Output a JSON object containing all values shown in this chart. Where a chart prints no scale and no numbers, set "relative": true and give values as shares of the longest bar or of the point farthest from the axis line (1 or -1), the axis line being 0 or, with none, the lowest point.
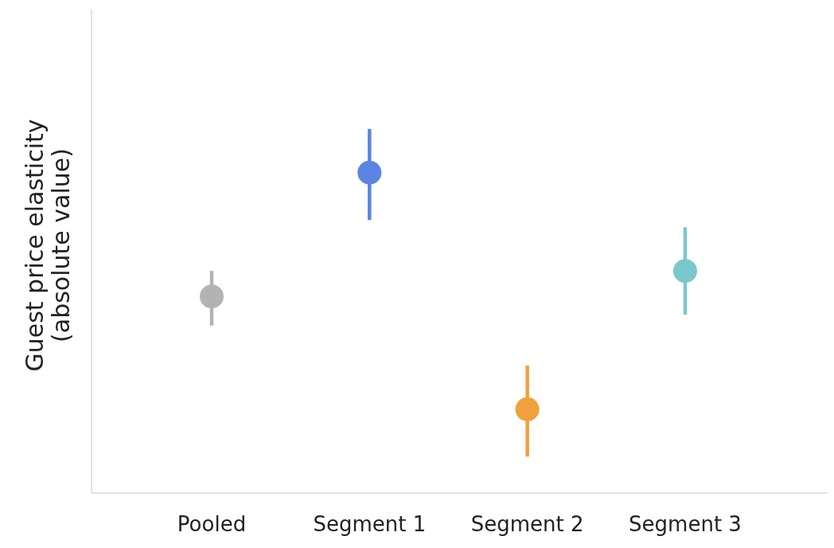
{
  "chart_data": {
    "type": "scatter",
    "relative": true,
    "ylabel": "Guest price elasticity\n(absolute value)",
    "categories": [
      "Pooled",
      "Segment 1",
      "Segment 2",
      "Segment 3"
    ],
    "series": [
      {
        "type": "line",
        "x": [
          "Pooled",
          "Pooled"
        ],
        "values": [
          0.46,
          0.61
        ],
        "color": "#b3b3b3"
      },
      {
        "type": "line",
        "x": [
          "Segment 1",
          "Segment 1"
        ],
        "values": [
          0.75,
          1
        ],
        "color": "#5b85e0"
      },
      {
        "type": "line",
        "x": [
          "Segment 2",
          "Segment 2"
        ],
        "values": [
          0.1,
          0.35
        ],
        "color": "#f0a03c"
      },
      {
        "type": "line",
        "x": [
          "Segment 3",
          "Segment 3"
        ],
        "values": [
          0.49,
          0.73
        ],
        "color": "#7ac8cc"
      },
      {
        "marker": "circle",
        "values": [
          0.54,
          0.88,
          0.23,
          0.61
        ],
        "colors": [
          "#b3b3b3",
          "#5b85e0",
          "#f0a03c",
          "#7ac8cc"
        ]
      }
    ]
  }
}
